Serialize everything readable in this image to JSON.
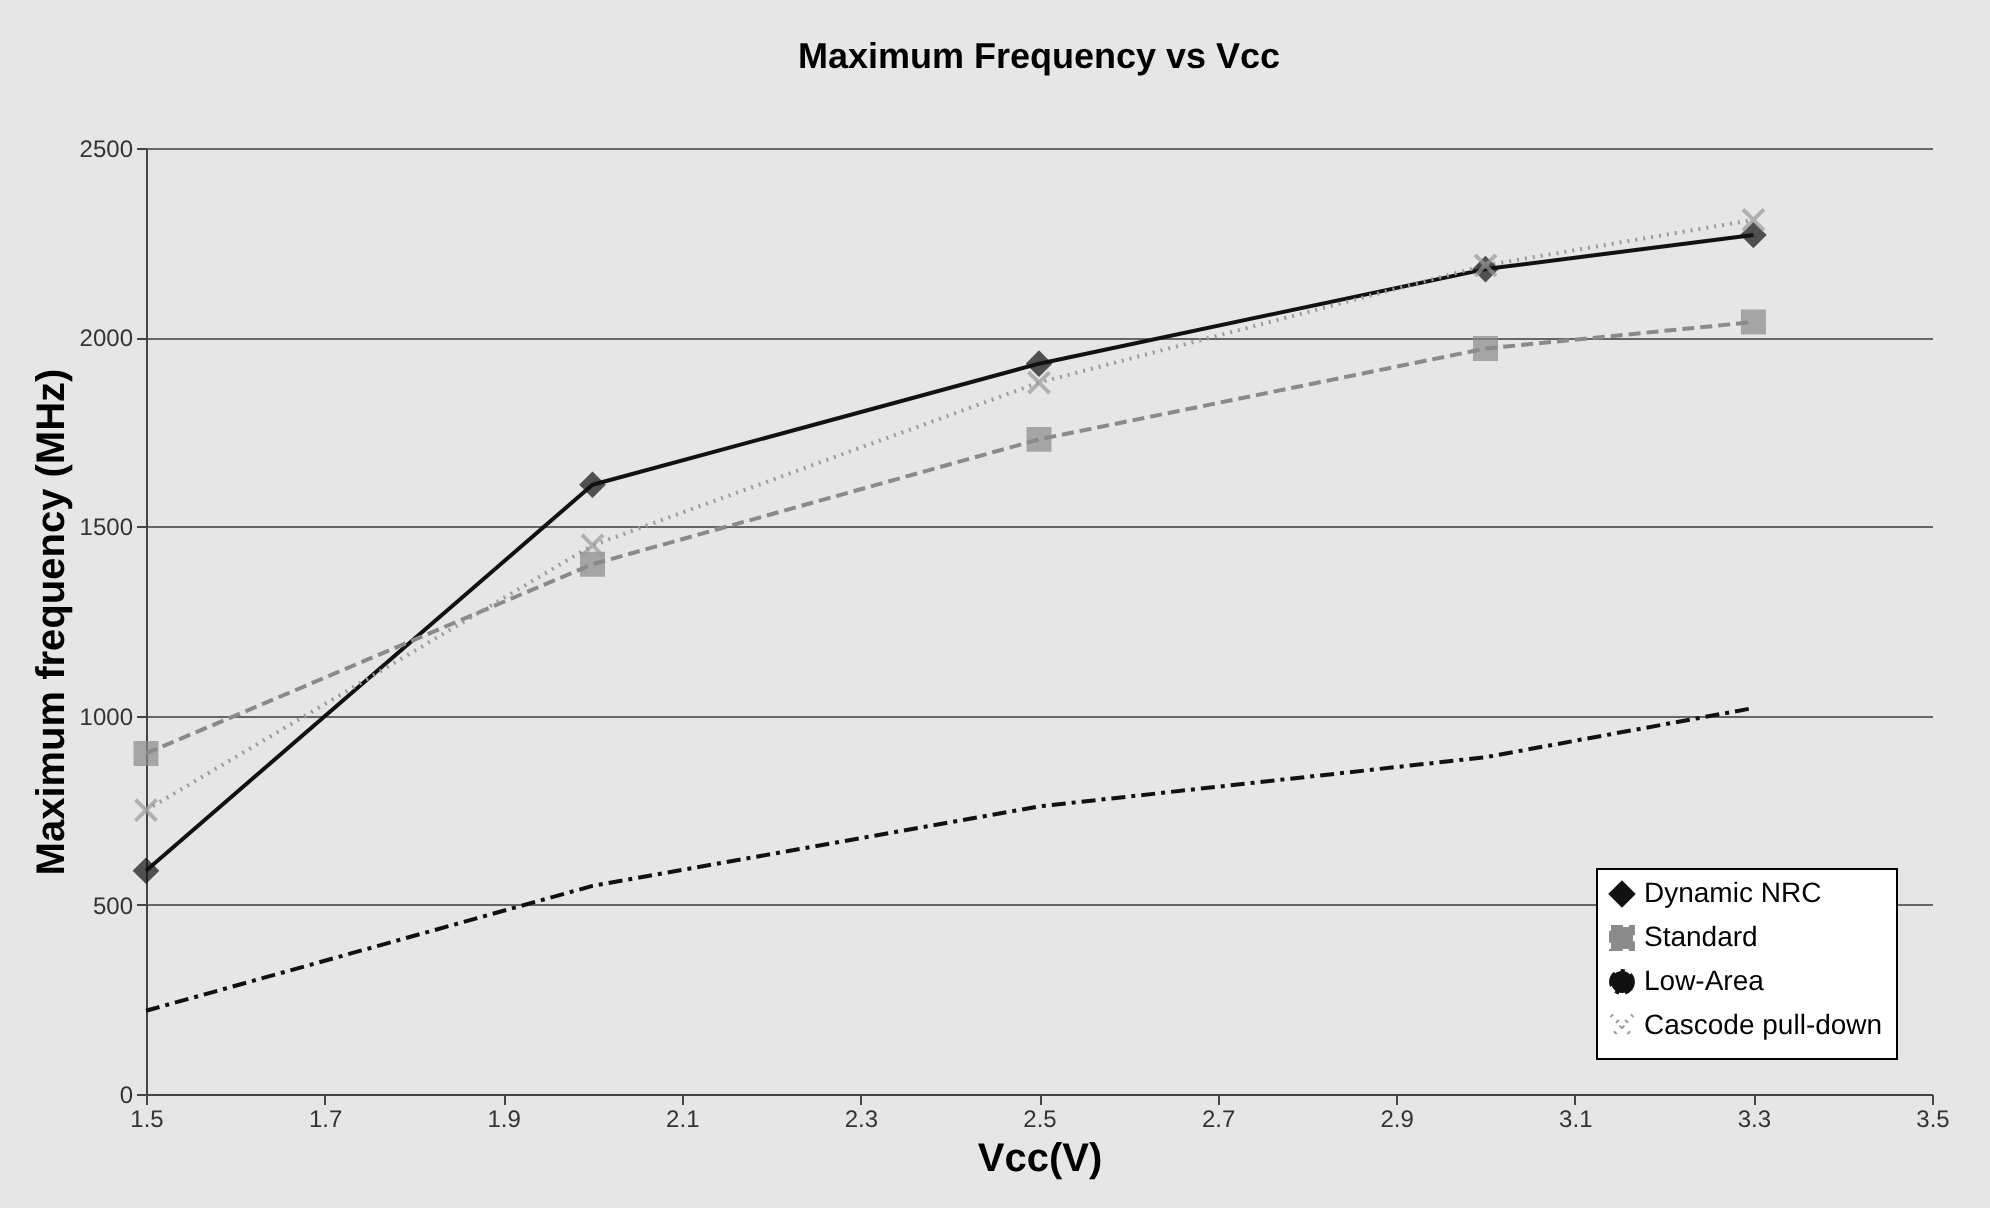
{
  "chart_data": {
    "type": "line",
    "title": "Maximum Frequency vs Vcc",
    "xlabel": "Vcc(V)",
    "ylabel": "Maximum frequency (MHz)",
    "x": [
      1.5,
      2.0,
      2.5,
      3.0,
      3.3
    ],
    "xlim": [
      1.5,
      3.5
    ],
    "xticks": [
      1.5,
      1.7,
      1.9,
      2.1,
      2.3,
      2.5,
      2.7,
      2.9,
      3.1,
      3.3,
      3.5
    ],
    "ylim": [
      0,
      2500
    ],
    "yticks": [
      0,
      500,
      1000,
      1500,
      2000,
      2500
    ],
    "grid": "y",
    "legend": "bottom right",
    "series": [
      {
        "name": "Dynamic NRC",
        "color": "#111111",
        "values": [
          590,
          1610,
          1930,
          2180,
          2270
        ],
        "marker": "diamond",
        "line_style": "solid"
      },
      {
        "name": "Standard",
        "color": "#8a8a8a",
        "values": [
          900,
          1400,
          1730,
          1970,
          2040
        ],
        "marker": "square",
        "line_style": "dashed"
      },
      {
        "name": "Low-Area",
        "color": "#111111",
        "values": [
          220,
          550,
          760,
          890,
          1020
        ],
        "marker": "none",
        "line_style": "dashdot"
      },
      {
        "name": "Cascode pull-down",
        "color": "#9a9a9a",
        "values": [
          750,
          1450,
          1880,
          2190,
          2310
        ],
        "marker": "cross",
        "line_style": "dotted"
      }
    ]
  }
}
